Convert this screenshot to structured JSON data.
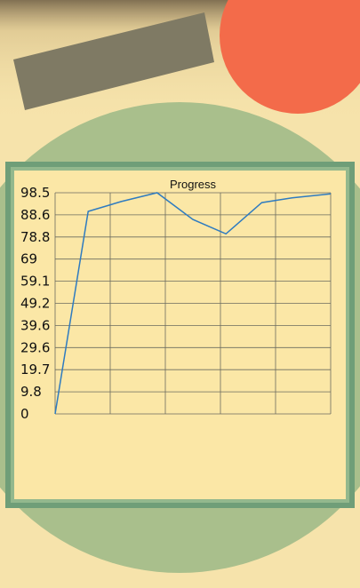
{
  "colors": {
    "background": "#f6e3ab",
    "wood_bar": "#7f7a64",
    "orange_disk": "#f36b4a",
    "green_disk": "#a9bf8c",
    "panel_border": "#6f9e78",
    "panel_fill": "#fbe7a6",
    "line": "#2e7bc0",
    "grid": "#6b6b5f"
  },
  "chart_data": {
    "type": "line",
    "title": "Progress",
    "xlabel": "",
    "ylabel": "",
    "y_ticks": [
      "0",
      "9.8",
      "19.7",
      "29.6",
      "39.6",
      "49.2",
      "59.1",
      "69",
      "78.8",
      "88.6",
      "98.5"
    ],
    "ylim": [
      0,
      98.5
    ],
    "x_range": [
      0,
      10
    ],
    "grid": true,
    "series": [
      {
        "x": [
          0,
          1.2,
          2.4,
          3.7,
          5.0,
          6.2,
          7.5,
          8.6,
          10.0
        ],
        "values": [
          0,
          90.2,
          94.6,
          98.5,
          86.6,
          80.2,
          94.1,
          96.2,
          98.0
        ]
      }
    ]
  }
}
